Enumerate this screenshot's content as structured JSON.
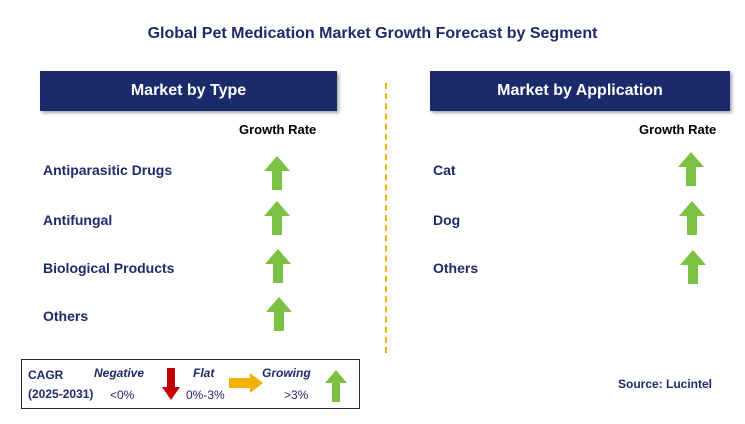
{
  "title": "Global Pet Medication Market Growth Forecast by Segment",
  "left_panel": {
    "header": "Market by Type",
    "column_label": "Growth Rate",
    "rows": [
      {
        "label": "Antiparasitic Drugs",
        "trend": "growing"
      },
      {
        "label": "Antifungal",
        "trend": "growing"
      },
      {
        "label": "Biological Products",
        "trend": "growing"
      },
      {
        "label": "Others",
        "trend": "growing"
      }
    ]
  },
  "right_panel": {
    "header": "Market by Application",
    "column_label": "Growth Rate",
    "rows": [
      {
        "label": "Cat",
        "trend": "growing"
      },
      {
        "label": "Dog",
        "trend": "growing"
      },
      {
        "label": "Others",
        "trend": "growing"
      }
    ]
  },
  "legend": {
    "cagr_label": "CAGR",
    "period": "(2025-2031)",
    "negative_label": "Negative",
    "negative_range": "<0%",
    "flat_label": "Flat",
    "flat_range": "0%-3%",
    "growing_label": "Growing",
    "growing_range": ">3%"
  },
  "source": "Source: Lucintel",
  "colors": {
    "header_bg": "#1b2a6b",
    "text_navy": "#1f2a6b",
    "arrow_up": "#7bc142",
    "arrow_down": "#c00000",
    "arrow_flat": "#f2b100",
    "divider": "#f2b100"
  }
}
